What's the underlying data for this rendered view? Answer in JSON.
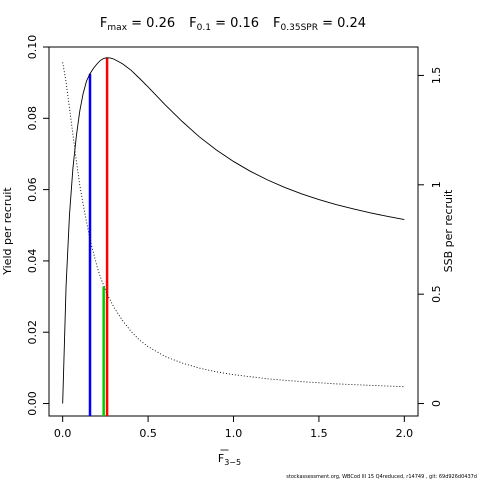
{
  "title_parts": [
    {
      "main": "F",
      "sub": "max",
      "value": " = 0.26"
    },
    {
      "main": "F",
      "sub": "0.1",
      "value": " = 0.16"
    },
    {
      "main": "F",
      "sub": "0.35SPR",
      "value": " = 0.24"
    }
  ],
  "footer": "stockassessment.org,  WBCod  III  15  Q4reduced,  r14749 ,  git:  69d926d0437d",
  "chart_data": {
    "type": "line",
    "xlabel_main": "F",
    "xlabel_sub": "3−5",
    "ylabel_left": "Yield per recruit",
    "ylabel_right": "SSB per recruit",
    "xlim": [
      -0.08,
      2.08
    ],
    "ylim_left": [
      -0.0035,
      0.1
    ],
    "ylim_right": [
      -0.057,
      1.63
    ],
    "xticks": [
      0.0,
      0.5,
      1.0,
      1.5,
      2.0
    ],
    "xtick_labels": [
      "0.0",
      "0.5",
      "1.0",
      "1.5",
      "2.0"
    ],
    "yticks_left": [
      0.0,
      0.02,
      0.04,
      0.06,
      0.08,
      0.1
    ],
    "ytick_labels_left": [
      "0.00",
      "0.02",
      "0.04",
      "0.06",
      "0.08",
      "0.10"
    ],
    "yticks_right": [
      0,
      0.5,
      1,
      1.5
    ],
    "ytick_labels_right": [
      "0",
      "0.5",
      "1",
      "1.5"
    ],
    "series": [
      {
        "axis": "left",
        "style": "solid",
        "color": "#000000",
        "points": [
          [
            0.0,
            0.0
          ],
          [
            0.02,
            0.033
          ],
          [
            0.04,
            0.053
          ],
          [
            0.06,
            0.066
          ],
          [
            0.08,
            0.075
          ],
          [
            0.1,
            0.082
          ],
          [
            0.12,
            0.087
          ],
          [
            0.14,
            0.0905
          ],
          [
            0.16,
            0.0925
          ],
          [
            0.18,
            0.094
          ],
          [
            0.2,
            0.0952
          ],
          [
            0.22,
            0.0962
          ],
          [
            0.24,
            0.0968
          ],
          [
            0.26,
            0.097
          ],
          [
            0.28,
            0.0969
          ],
          [
            0.3,
            0.0966
          ],
          [
            0.35,
            0.0953
          ],
          [
            0.4,
            0.0935
          ],
          [
            0.45,
            0.0912
          ],
          [
            0.5,
            0.0888
          ],
          [
            0.6,
            0.0838
          ],
          [
            0.7,
            0.0791
          ],
          [
            0.8,
            0.0748
          ],
          [
            0.9,
            0.0711
          ],
          [
            1.0,
            0.0679
          ],
          [
            1.1,
            0.0651
          ],
          [
            1.2,
            0.0627
          ],
          [
            1.3,
            0.0606
          ],
          [
            1.4,
            0.0588
          ],
          [
            1.5,
            0.0572
          ],
          [
            1.6,
            0.0558
          ],
          [
            1.7,
            0.0546
          ],
          [
            1.8,
            0.0535
          ],
          [
            1.9,
            0.0525
          ],
          [
            2.0,
            0.0516
          ]
        ]
      },
      {
        "axis": "right",
        "style": "dotted",
        "color": "#000000",
        "points": [
          [
            0.0,
            1.56
          ],
          [
            0.02,
            1.47
          ],
          [
            0.04,
            1.35
          ],
          [
            0.06,
            1.23
          ],
          [
            0.08,
            1.11
          ],
          [
            0.1,
            1.0
          ],
          [
            0.12,
            0.91
          ],
          [
            0.14,
            0.83
          ],
          [
            0.16,
            0.75
          ],
          [
            0.18,
            0.69
          ],
          [
            0.2,
            0.63
          ],
          [
            0.22,
            0.58
          ],
          [
            0.24,
            0.54
          ],
          [
            0.26,
            0.5
          ],
          [
            0.28,
            0.47
          ],
          [
            0.3,
            0.44
          ],
          [
            0.35,
            0.38
          ],
          [
            0.4,
            0.33
          ],
          [
            0.45,
            0.29
          ],
          [
            0.5,
            0.26
          ],
          [
            0.6,
            0.215
          ],
          [
            0.7,
            0.185
          ],
          [
            0.8,
            0.162
          ],
          [
            0.9,
            0.145
          ],
          [
            1.0,
            0.132
          ],
          [
            1.2,
            0.113
          ],
          [
            1.4,
            0.1
          ],
          [
            1.6,
            0.09
          ],
          [
            1.8,
            0.083
          ],
          [
            2.0,
            0.077
          ]
        ]
      }
    ],
    "reference_lines": [
      {
        "name": "F0.1",
        "x": 0.16,
        "y_top": 0.0925,
        "color": "#0000ff"
      },
      {
        "name": "Fmax",
        "x": 0.26,
        "y_top": 0.097,
        "color": "#ff0000"
      },
      {
        "name": "F0.35SPR",
        "x": 0.24,
        "y_top": 0.0328,
        "color": "#00cc00"
      }
    ]
  }
}
